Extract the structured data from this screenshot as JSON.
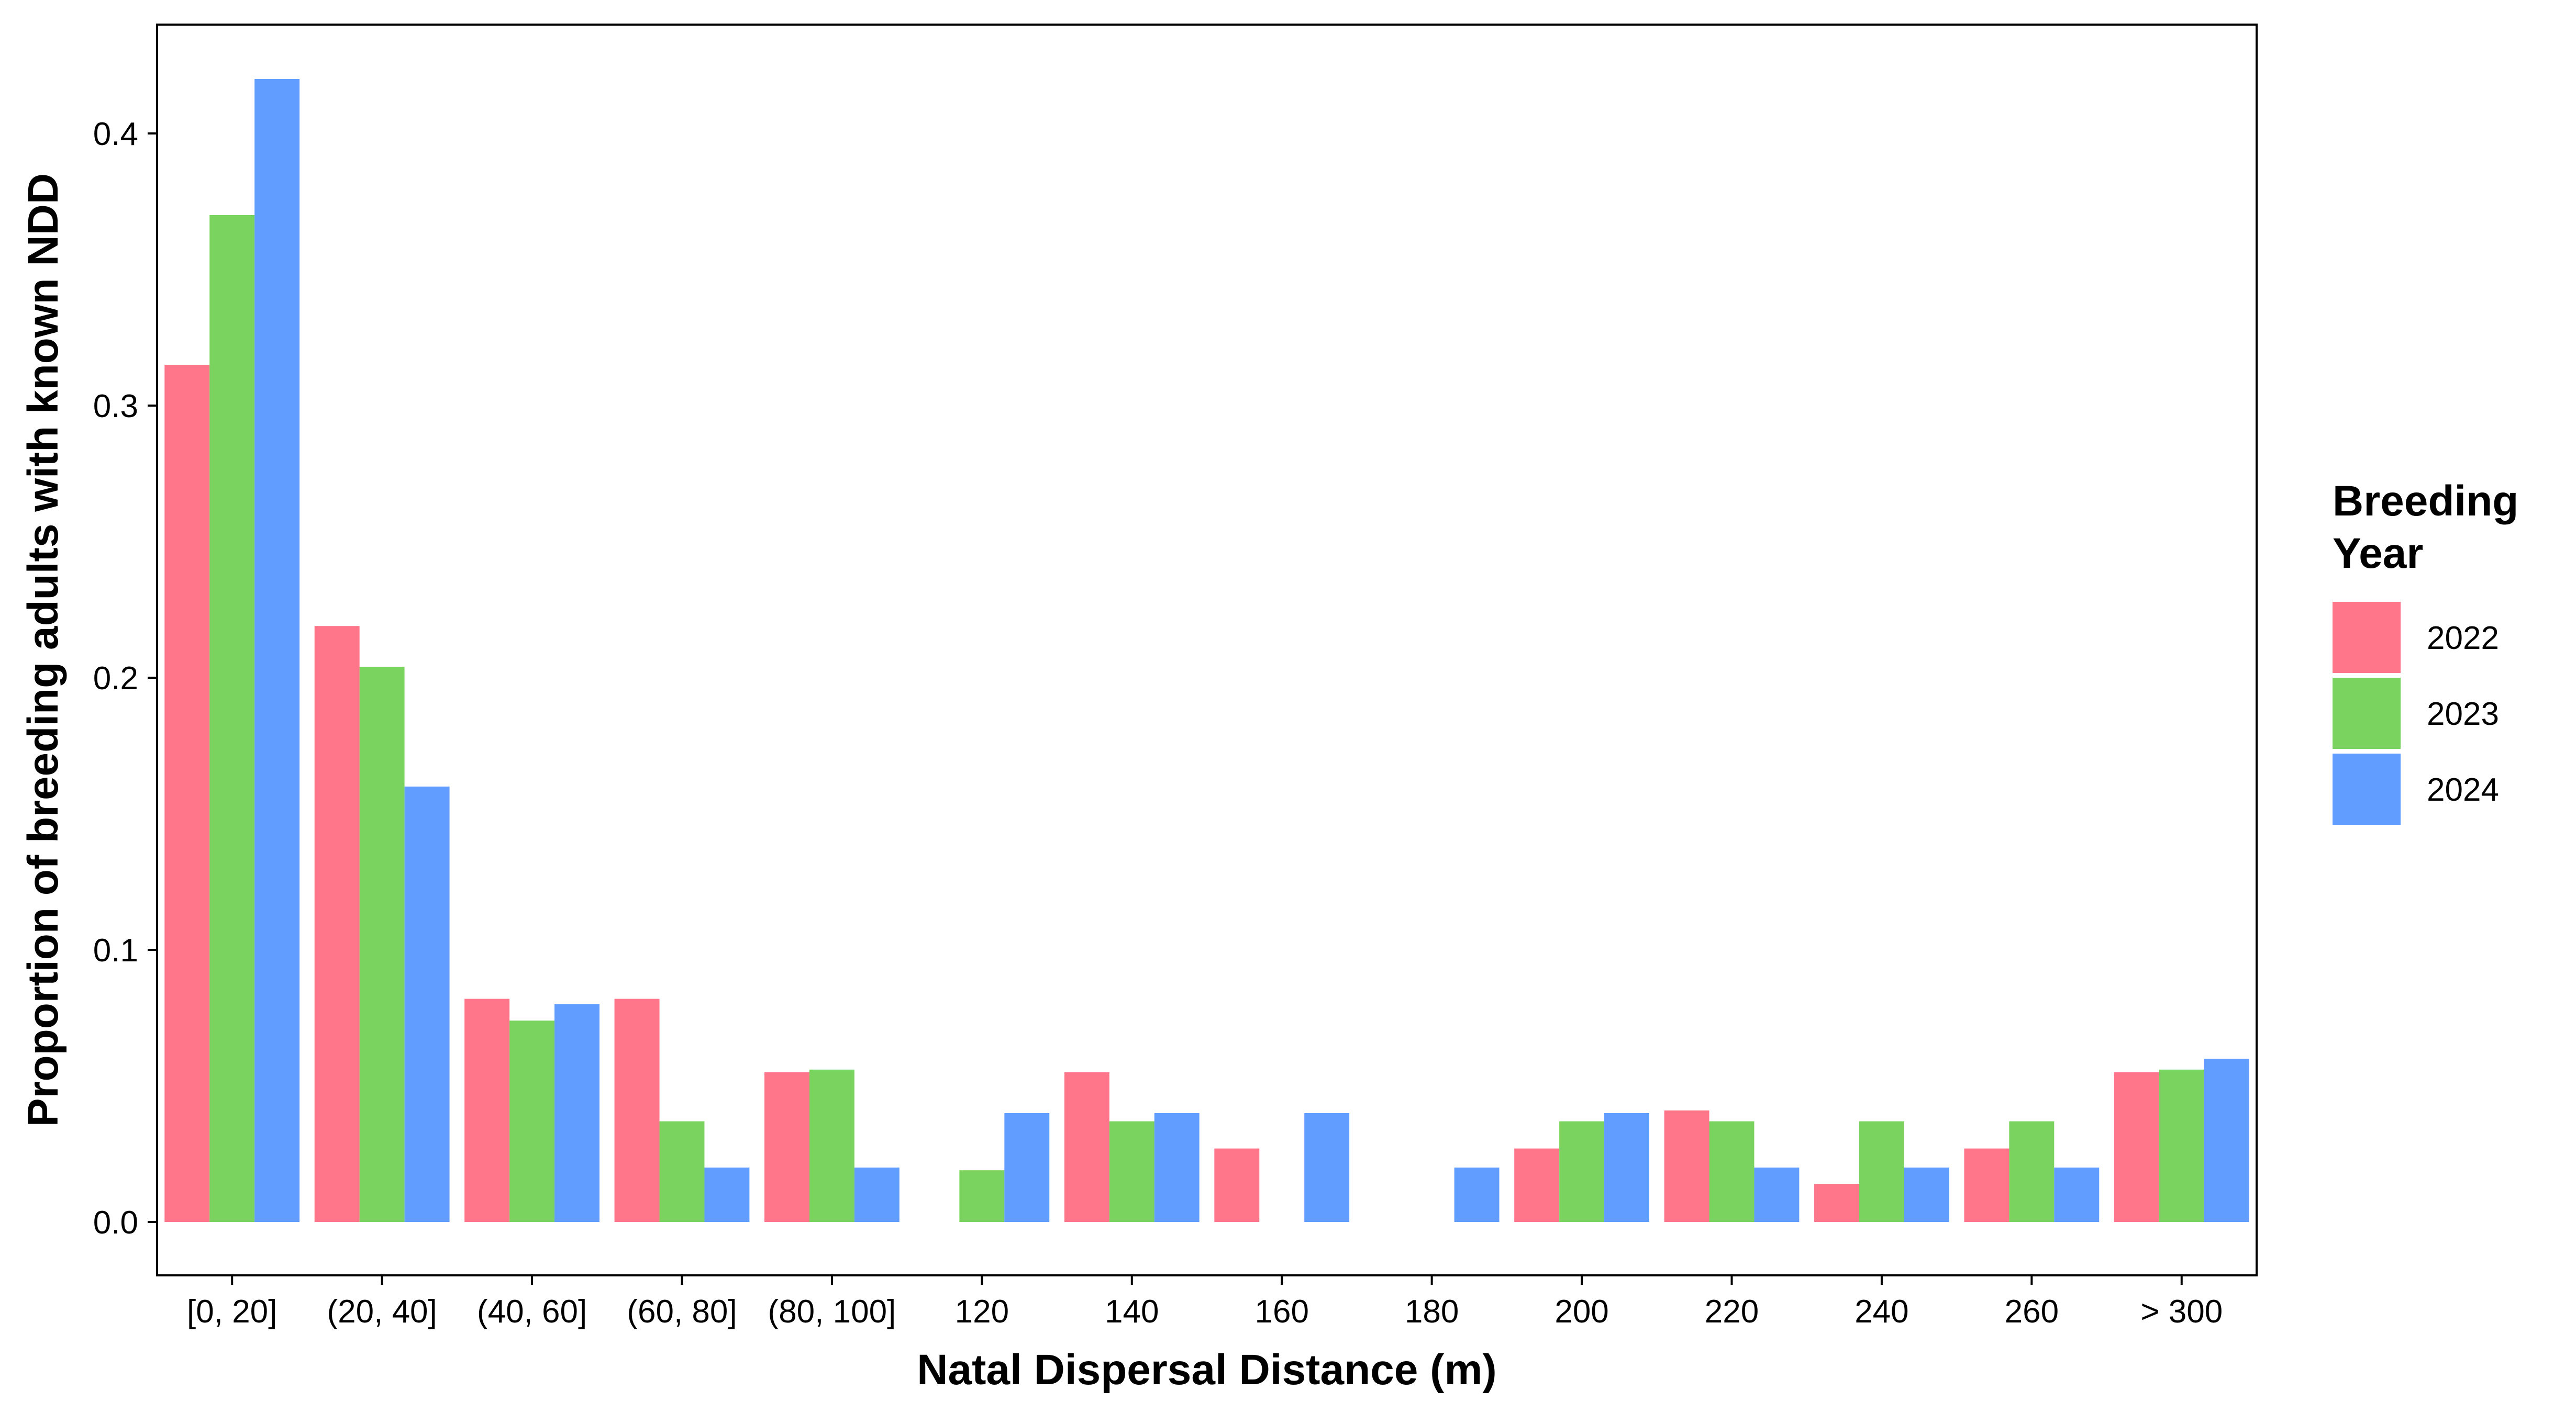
{
  "chart_data": {
    "type": "bar",
    "xlabel": "Natal Dispersal Distance (m)",
    "ylabel": "Proportion of breeding adults with known NDD",
    "ylim": [
      -0.04,
      0.435
    ],
    "yticks": [
      "0.0",
      "0.1",
      "0.2",
      "0.3",
      "0.4"
    ],
    "grid": false,
    "legend_position": "right",
    "legend_title": [
      "Breeding",
      "Year"
    ],
    "categories": [
      "[0, 20]",
      "(20, 40]",
      "(40, 60]",
      "(60, 80]",
      "(80, 100]",
      "120",
      "140",
      "160",
      "180",
      "200",
      "220",
      "240",
      "260",
      "> 300"
    ],
    "series": [
      {
        "name": "2022",
        "color": "#FF7589",
        "values": [
          0.315,
          0.219,
          0.082,
          0.082,
          0.055,
          0,
          0.055,
          0.027,
          0,
          0.027,
          0.041,
          0.014,
          0.027,
          0.055
        ]
      },
      {
        "name": "2023",
        "color": "#7BD35F",
        "values": [
          0.37,
          0.204,
          0.074,
          0.037,
          0.056,
          0.019,
          0.037,
          0,
          0,
          0.037,
          0.037,
          0.037,
          0.037,
          0.056
        ]
      },
      {
        "name": "2024",
        "color": "#619CFF",
        "values": [
          0.42,
          0.16,
          0.08,
          0.02,
          0.02,
          0.04,
          0.04,
          0.04,
          0.02,
          0.04,
          0.02,
          0.02,
          0.02,
          0.06
        ]
      }
    ]
  }
}
